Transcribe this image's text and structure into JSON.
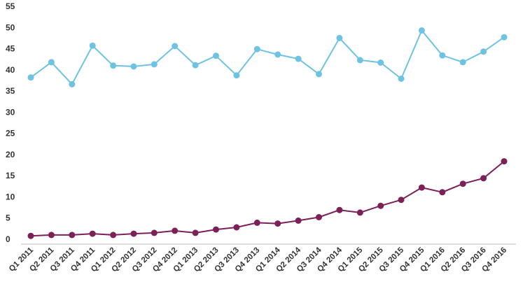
{
  "chart_data": {
    "type": "line",
    "title": "",
    "xlabel": "",
    "ylabel": "",
    "ylim": [
      0,
      55
    ],
    "yticks": [
      0,
      5,
      10,
      15,
      20,
      25,
      30,
      35,
      40,
      45,
      50,
      55
    ],
    "grid": false,
    "legend": "none",
    "categories": [
      "Q1 2011",
      "Q2 2011",
      "Q3 2011",
      "Q4 2011",
      "Q1 2012",
      "Q2 2012",
      "Q3 2012",
      "Q4 2012",
      "Q1 2013",
      "Q2 2013",
      "Q3 2013",
      "Q4 2013",
      "Q1 2014",
      "Q2 2014",
      "Q3 2014",
      "Q4 2014",
      "Q1 2015",
      "Q2 2015",
      "Q3 2015",
      "Q4 2015",
      "Q1 2016",
      "Q2 2016",
      "Q3 2016",
      "Q4 2016"
    ],
    "series": [
      {
        "color": "#6ec3e3",
        "values": [
          38.2,
          41.8,
          36.6,
          45.7,
          41.0,
          40.8,
          41.3,
          45.6,
          41.1,
          43.3,
          38.7,
          44.9,
          43.6,
          42.6,
          39.0,
          47.5,
          42.3,
          41.7,
          37.9,
          49.3,
          43.4,
          41.8,
          44.3,
          47.7
        ]
      },
      {
        "color": "#7b2158",
        "values": [
          0.8,
          1.0,
          1.0,
          1.3,
          1.0,
          1.3,
          1.5,
          2.0,
          1.5,
          2.3,
          2.8,
          3.9,
          3.7,
          4.4,
          5.2,
          6.9,
          6.3,
          7.9,
          9.3,
          12.2,
          11.1,
          13.1,
          14.4,
          18.4
        ]
      }
    ]
  }
}
